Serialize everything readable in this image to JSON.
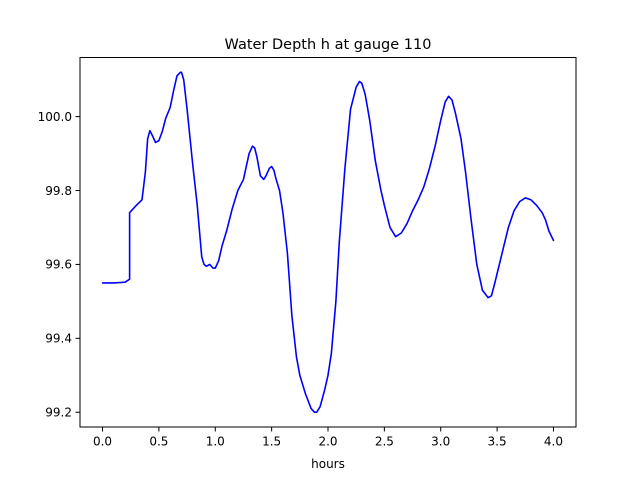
{
  "chart_data": {
    "type": "line",
    "title": "Water Depth h at gauge 110",
    "xlabel": "hours",
    "ylabel": "",
    "xlim": [
      -0.2,
      4.2
    ],
    "ylim": [
      99.16,
      100.16
    ],
    "xticks": [
      0.0,
      0.5,
      1.0,
      1.5,
      2.0,
      2.5,
      3.0,
      3.5,
      4.0
    ],
    "xtick_labels": [
      "0.0",
      "0.5",
      "1.0",
      "1.5",
      "2.0",
      "2.5",
      "3.0",
      "3.5",
      "4.0"
    ],
    "yticks": [
      99.2,
      99.4,
      99.6,
      99.8,
      100.0
    ],
    "ytick_labels": [
      "99.2",
      "99.4",
      "99.6",
      "99.8",
      "100.0"
    ],
    "grid": false,
    "legend": "none",
    "series": [
      {
        "color": "#0000ff",
        "x": [
          0.0,
          0.1,
          0.2,
          0.24,
          0.24,
          0.3,
          0.35,
          0.38,
          0.4,
          0.42,
          0.44,
          0.47,
          0.5,
          0.53,
          0.56,
          0.6,
          0.63,
          0.66,
          0.69,
          0.7,
          0.72,
          0.75,
          0.78,
          0.8,
          0.84,
          0.88,
          0.9,
          0.92,
          0.95,
          0.98,
          1.0,
          1.03,
          1.06,
          1.1,
          1.15,
          1.2,
          1.25,
          1.3,
          1.33,
          1.35,
          1.37,
          1.4,
          1.43,
          1.45,
          1.48,
          1.5,
          1.52,
          1.54,
          1.57,
          1.6,
          1.64,
          1.68,
          1.72,
          1.75,
          1.8,
          1.85,
          1.88,
          1.9,
          1.93,
          1.97,
          2.0,
          2.03,
          2.07,
          2.1,
          2.15,
          2.2,
          2.25,
          2.28,
          2.3,
          2.33,
          2.37,
          2.42,
          2.47,
          2.5,
          2.55,
          2.6,
          2.65,
          2.7,
          2.75,
          2.8,
          2.85,
          2.9,
          2.95,
          3.0,
          3.04,
          3.07,
          3.1,
          3.13,
          3.18,
          3.22,
          3.27,
          3.32,
          3.37,
          3.42,
          3.45,
          3.48,
          3.52,
          3.56,
          3.6,
          3.65,
          3.7,
          3.75,
          3.8,
          3.85,
          3.9,
          3.93,
          3.96,
          4.0
        ],
        "y": [
          99.55,
          99.55,
          99.552,
          99.56,
          99.74,
          99.76,
          99.775,
          99.85,
          99.94,
          99.962,
          99.95,
          99.93,
          99.935,
          99.96,
          99.995,
          100.025,
          100.07,
          100.11,
          100.12,
          100.12,
          100.1,
          100.02,
          99.93,
          99.87,
          99.76,
          99.62,
          99.6,
          99.595,
          99.6,
          99.59,
          99.59,
          99.61,
          99.65,
          99.69,
          99.75,
          99.8,
          99.83,
          99.9,
          99.92,
          99.915,
          99.89,
          99.84,
          99.83,
          99.84,
          99.86,
          99.865,
          99.855,
          99.83,
          99.8,
          99.74,
          99.63,
          99.46,
          99.35,
          99.3,
          99.25,
          99.21,
          99.2,
          99.2,
          99.215,
          99.26,
          99.3,
          99.36,
          99.5,
          99.66,
          99.86,
          100.02,
          100.08,
          100.095,
          100.09,
          100.06,
          99.99,
          99.88,
          99.8,
          99.76,
          99.7,
          99.675,
          99.685,
          99.71,
          99.745,
          99.775,
          99.81,
          99.86,
          99.92,
          99.99,
          100.04,
          100.055,
          100.045,
          100.01,
          99.94,
          99.85,
          99.72,
          99.6,
          99.53,
          99.51,
          99.515,
          99.55,
          99.6,
          99.65,
          99.7,
          99.745,
          99.77,
          99.78,
          99.775,
          99.76,
          99.74,
          99.72,
          99.69,
          99.665
        ]
      }
    ]
  }
}
